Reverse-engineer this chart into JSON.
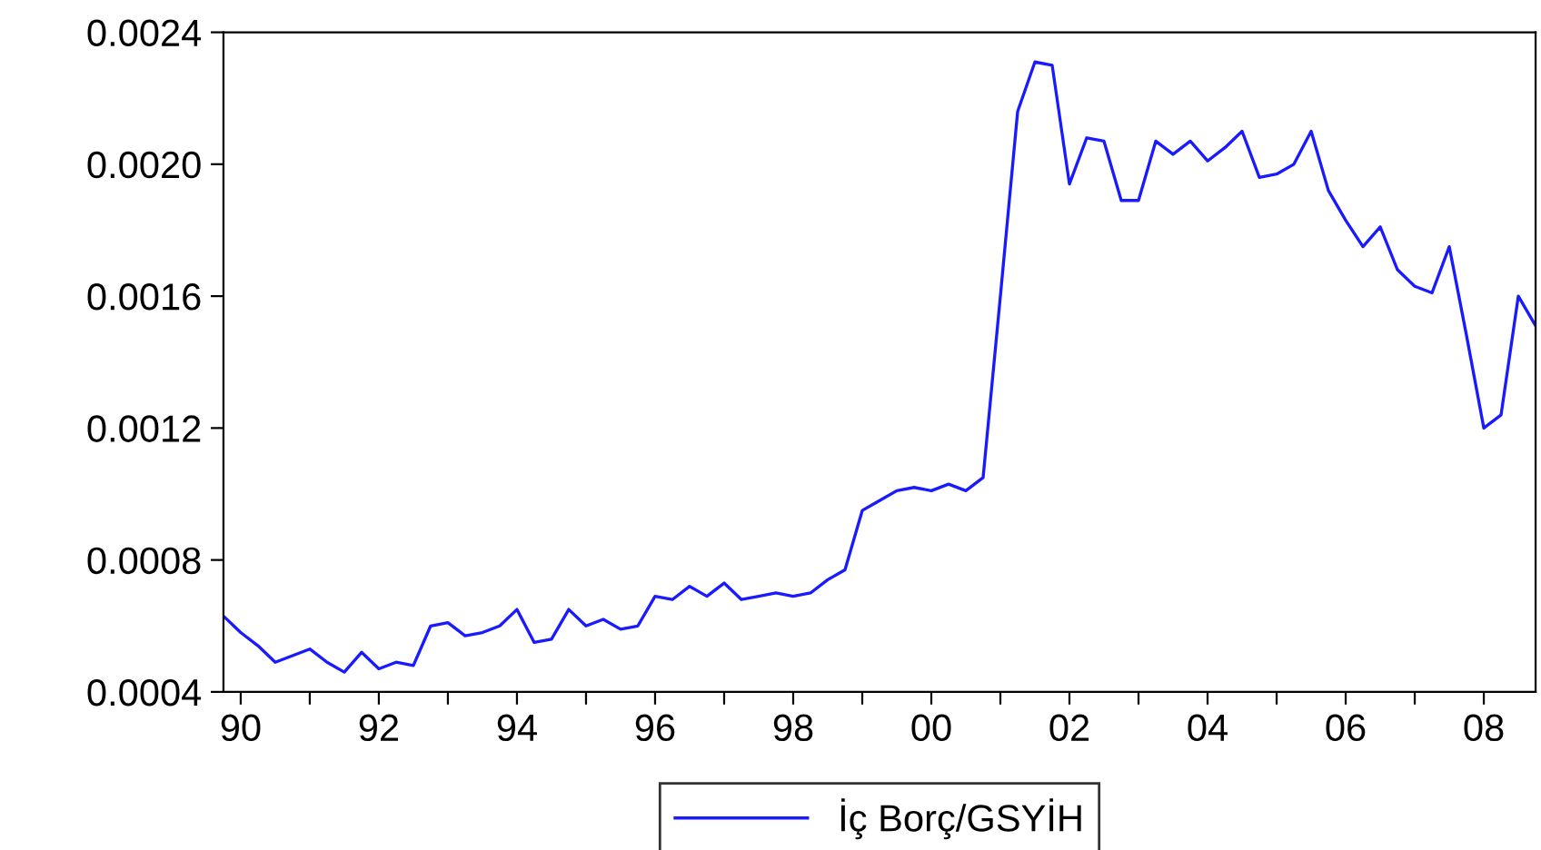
{
  "chart_data": {
    "type": "line",
    "x": [
      1989.75,
      1990.0,
      1990.25,
      1990.5,
      1990.75,
      1991.0,
      1991.25,
      1991.5,
      1991.75,
      1992.0,
      1992.25,
      1992.5,
      1992.75,
      1993.0,
      1993.25,
      1993.5,
      1993.75,
      1994.0,
      1994.25,
      1994.5,
      1994.75,
      1995.0,
      1995.25,
      1995.5,
      1995.75,
      1996.0,
      1996.25,
      1996.5,
      1996.75,
      1997.0,
      1997.25,
      1997.5,
      1997.75,
      1998.0,
      1998.25,
      1998.5,
      1998.75,
      1999.0,
      1999.25,
      1999.5,
      1999.75,
      2000.0,
      2000.25,
      2000.5,
      2000.75,
      2001.0,
      2001.25,
      2001.5,
      2001.75,
      2002.0,
      2002.25,
      2002.5,
      2002.75,
      2003.0,
      2003.25,
      2003.5,
      2003.75,
      2004.0,
      2004.25,
      2004.5,
      2004.75,
      2005.0,
      2005.25,
      2005.5,
      2005.75,
      2006.0,
      2006.25,
      2006.5,
      2006.75,
      2007.0,
      2007.25,
      2007.5,
      2007.75,
      2008.0,
      2008.25,
      2008.5,
      2008.75
    ],
    "series": [
      {
        "name": "İç Borç/GSYİH",
        "color": "#1a1aff",
        "values": [
          0.00063,
          0.00058,
          0.00054,
          0.00049,
          0.00051,
          0.00053,
          0.00049,
          0.00046,
          0.00052,
          0.00047,
          0.00049,
          0.00048,
          0.0006,
          0.00061,
          0.00057,
          0.00058,
          0.0006,
          0.00065,
          0.00055,
          0.00056,
          0.00065,
          0.0006,
          0.00062,
          0.00059,
          0.0006,
          0.00069,
          0.00068,
          0.00072,
          0.00069,
          0.00073,
          0.00068,
          0.00069,
          0.0007,
          0.00069,
          0.0007,
          0.00074,
          0.00077,
          0.00095,
          0.00098,
          0.00101,
          0.00102,
          0.00101,
          0.00103,
          0.00101,
          0.00105,
          0.0016,
          0.00216,
          0.00231,
          0.0023,
          0.00194,
          0.00208,
          0.00207,
          0.00189,
          0.00189,
          0.00207,
          0.00203,
          0.00207,
          0.00201,
          0.00205,
          0.0021,
          0.00196,
          0.00197,
          0.002,
          0.0021,
          0.00192,
          0.00183,
          0.00175,
          0.00181,
          0.00168,
          0.00163,
          0.00161,
          0.00175,
          0.00148,
          0.0012,
          0.00124,
          0.0016,
          0.00151
        ]
      }
    ],
    "xlim": [
      1989.75,
      2008.75
    ],
    "xticks": [
      {
        "value": 1990,
        "label": "90"
      },
      {
        "value": 1991,
        "label": null
      },
      {
        "value": 1992,
        "label": "92"
      },
      {
        "value": 1993,
        "label": null
      },
      {
        "value": 1994,
        "label": "94"
      },
      {
        "value": 1995,
        "label": null
      },
      {
        "value": 1996,
        "label": "96"
      },
      {
        "value": 1997,
        "label": null
      },
      {
        "value": 1998,
        "label": "98"
      },
      {
        "value": 1999,
        "label": null
      },
      {
        "value": 2000,
        "label": "00"
      },
      {
        "value": 2001,
        "label": null
      },
      {
        "value": 2002,
        "label": "02"
      },
      {
        "value": 2003,
        "label": null
      },
      {
        "value": 2004,
        "label": "04"
      },
      {
        "value": 2005,
        "label": null
      },
      {
        "value": 2006,
        "label": "06"
      },
      {
        "value": 2007,
        "label": null
      },
      {
        "value": 2008,
        "label": "08"
      }
    ],
    "ylim": [
      0.0004,
      0.0024
    ],
    "yticks": [
      {
        "value": 0.0004,
        "label": "0.0004"
      },
      {
        "value": 0.0008,
        "label": "0.0008"
      },
      {
        "value": 0.0012,
        "label": "0.0012"
      },
      {
        "value": 0.0016,
        "label": "0.0016"
      },
      {
        "value": 0.002,
        "label": "0.0020"
      },
      {
        "value": 0.0024,
        "label": "0.0024"
      }
    ],
    "grid": false,
    "legend": "bottom",
    "marker": "none",
    "line_style": "solid"
  }
}
